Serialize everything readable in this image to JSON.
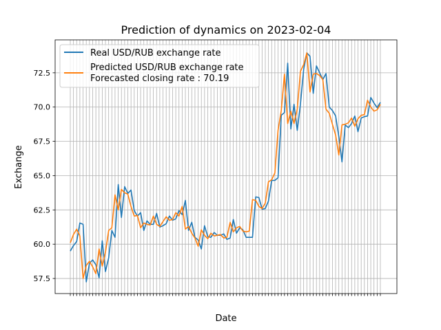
{
  "chart_data": {
    "type": "line",
    "title": "Prediction of dynamics on 2023-02-04",
    "xlabel": "Date",
    "ylabel": "Exchange",
    "ylim": [
      56.4,
      74.9
    ],
    "yticks": [
      57.5,
      60.0,
      62.5,
      65.0,
      67.5,
      70.0,
      72.5
    ],
    "ytick_labels": [
      "57.5",
      "60.0",
      "62.5",
      "65.0",
      "67.5",
      "70.0",
      "72.5"
    ],
    "x_tick_labels_shown": false,
    "grid": true,
    "legend_position": "upper-left",
    "legend_entries": [
      "Real USD/RUB exchange rate",
      "Predicted USD/RUB exchange rate",
      "Forecasted closing rate : 70.19"
    ],
    "colors": {
      "real": "#1f77b4",
      "predicted": "#ff7f0e",
      "grid": "#b0b0b0"
    },
    "series": [
      {
        "name": "Real USD/RUB exchange rate",
        "values": [
          59.5,
          59.9,
          60.2,
          61.55,
          61.45,
          57.25,
          58.6,
          58.85,
          58.5,
          57.55,
          60.25,
          58.0,
          59.0,
          61.0,
          60.5,
          64.35,
          61.95,
          64.2,
          63.7,
          63.95,
          62.45,
          62.05,
          62.3,
          61.0,
          61.7,
          61.45,
          61.45,
          62.25,
          61.25,
          61.35,
          61.5,
          62.05,
          61.75,
          61.85,
          62.45,
          62.15,
          63.2,
          61.0,
          61.6,
          60.5,
          60.3,
          59.65,
          61.35,
          60.55,
          60.5,
          60.85,
          60.65,
          60.65,
          60.75,
          60.35,
          60.45,
          61.8,
          60.8,
          61.2,
          61.05,
          60.5,
          60.5,
          60.5,
          63.45,
          63.4,
          62.55,
          62.6,
          63.15,
          64.65,
          64.65,
          64.85,
          69.4,
          69.6,
          73.2,
          68.4,
          70.2,
          68.3,
          70.2,
          72.75,
          73.95,
          73.7,
          71.0,
          73.0,
          72.5,
          72.0,
          72.45,
          70.0,
          69.75,
          69.35,
          67.85,
          66.0,
          68.7,
          68.5,
          68.8,
          69.35,
          68.2,
          69.2,
          69.3,
          69.35,
          70.7,
          70.3,
          69.95,
          70.35
        ]
      },
      {
        "name": "Predicted USD/RUB exchange rate",
        "values": [
          60.1,
          60.7,
          61.1,
          60.6,
          57.5,
          58.45,
          58.75,
          58.35,
          57.85,
          59.65,
          58.4,
          59.4,
          61.0,
          61.2,
          63.6,
          62.5,
          64.0,
          63.75,
          63.65,
          62.75,
          62.05,
          62.1,
          61.2,
          61.55,
          61.45,
          61.4,
          62.05,
          61.45,
          61.3,
          61.65,
          62.0,
          61.75,
          61.8,
          62.3,
          62.05,
          62.75,
          61.1,
          61.3,
          60.8,
          60.45,
          59.85,
          61.05,
          60.65,
          60.4,
          60.8,
          60.6,
          60.65,
          60.7,
          60.45,
          60.5,
          61.6,
          60.9,
          61.2,
          61.3,
          60.95,
          60.9,
          60.95,
          63.25,
          63.2,
          62.75,
          62.6,
          63.0,
          64.55,
          64.7,
          65.2,
          68.3,
          69.75,
          72.4,
          68.8,
          69.7,
          68.8,
          69.85,
          72.6,
          73.1,
          73.95,
          71.1,
          72.4,
          72.45,
          72.3,
          72.0,
          69.85,
          69.55,
          68.75,
          67.95,
          66.5,
          68.7,
          68.75,
          68.85,
          69.2,
          68.6,
          69.15,
          69.4,
          69.45,
          70.5,
          70.0,
          69.7,
          69.8,
          70.19
        ]
      }
    ]
  }
}
